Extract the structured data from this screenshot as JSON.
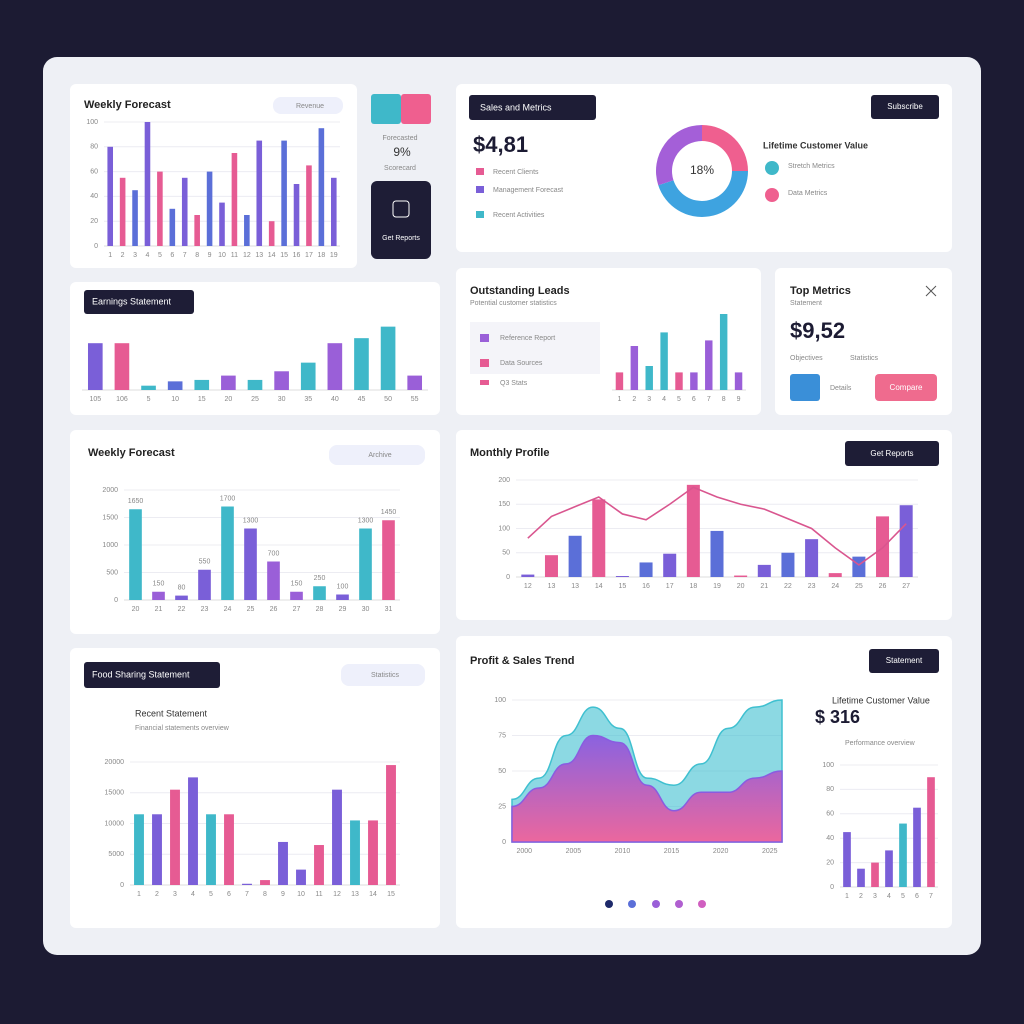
{
  "chart_data": [
    {
      "type": "bar",
      "title": "Weekly Forecast",
      "categories": [
        "1",
        "2",
        "3",
        "4",
        "5",
        "6",
        "7",
        "8",
        "9",
        "10",
        "11",
        "12",
        "13",
        "14",
        "15",
        "16",
        "17",
        "18",
        "19"
      ],
      "values": [
        80,
        55,
        45,
        100,
        60,
        30,
        55,
        25,
        60,
        35,
        75,
        25,
        85,
        20,
        85,
        50,
        65,
        95,
        55
      ],
      "palette": [
        "#7a5fd8",
        "#e65b93",
        "#5b6fd8"
      ],
      "ylim": [
        0,
        100
      ],
      "yticks": [
        0,
        20,
        40,
        60,
        80,
        100
      ],
      "grid": true
    },
    {
      "type": "bar",
      "title": "Earnings Statement",
      "categories": [
        "105",
        "106",
        "5",
        "10",
        "15",
        "20",
        "25",
        "30",
        "35",
        "40",
        "45",
        "50",
        "55"
      ],
      "values": [
        65,
        65,
        6,
        12,
        14,
        20,
        14,
        26,
        38,
        65,
        72,
        88,
        20
      ],
      "colors": [
        "#7a5fd8",
        "#e65b93",
        "#3fb8c9",
        "#5b6fd8",
        "#3fb8c9",
        "#9a5fd8",
        "#3fb8c9",
        "#9a5fd8",
        "#3fb8c9",
        "#9a5fd8",
        "#3fb8c9",
        "#3fb8c9",
        "#9a5fd8"
      ],
      "ylim": [
        0,
        100
      ],
      "grid": false
    },
    {
      "type": "bar",
      "title": "Outstanding Leads",
      "categories": [
        "1",
        "2",
        "3",
        "4",
        "5",
        "6",
        "7",
        "8",
        "9"
      ],
      "values": [
        22,
        55,
        30,
        72,
        22,
        22,
        62,
        95,
        22
      ],
      "colors": [
        "#e65b93",
        "#9a5fd8",
        "#3fb8c9",
        "#3fb8c9",
        "#e65b93",
        "#9a5fd8",
        "#9a5fd8",
        "#3fb8c9",
        "#9a5fd8"
      ],
      "ylim": [
        0,
        100
      ],
      "grid": false
    },
    {
      "type": "bar",
      "title": "Weekly Forecast",
      "categories": [
        "20",
        "21",
        "22",
        "23",
        "24",
        "25",
        "26",
        "27",
        "28",
        "29",
        "30",
        "31"
      ],
      "values": [
        1650,
        150,
        80,
        550,
        1700,
        1300,
        700,
        150,
        250,
        100,
        1300,
        1450
      ],
      "colors": [
        "#3fb8c9",
        "#9a5fd8",
        "#7a5fd8",
        "#7a5fd8",
        "#3fb8c9",
        "#7a5fd8",
        "#9a5fd8",
        "#9a5fd8",
        "#3fb8c9",
        "#7a5fd8",
        "#3fb8c9",
        "#e65b93"
      ],
      "ylim": [
        0,
        2000
      ],
      "yticks": [
        0,
        500,
        1000,
        1500,
        2000
      ],
      "grid": true,
      "show_values": true
    },
    {
      "type": "combo",
      "title": "Monthly Profile",
      "categories": [
        "12",
        "13",
        "13",
        "14",
        "15",
        "16",
        "17",
        "18",
        "19",
        "20",
        "21",
        "22",
        "23",
        "24",
        "25",
        "26",
        "27"
      ],
      "series": [
        {
          "type": "bar",
          "palette": [
            "#7a5fd8",
            "#e65b93",
            "#5b6fd8",
            "#e65b93",
            "#7a5fd8",
            "#5b6fd8"
          ],
          "values": [
            5,
            45,
            85,
            160,
            2,
            30,
            48,
            190,
            95,
            3,
            25,
            50,
            78,
            8,
            42,
            125,
            148
          ]
        },
        {
          "type": "line",
          "color": "#d9568f",
          "values": [
            80,
            125,
            145,
            165,
            130,
            118,
            150,
            185,
            165,
            150,
            140,
            120,
            100,
            60,
            25,
            60,
            110
          ]
        }
      ],
      "ylim": [
        0,
        200
      ],
      "yticks": [
        0,
        50,
        100,
        150,
        200
      ],
      "grid": true
    },
    {
      "type": "bar",
      "title": "Food Sharing Statement",
      "categories": [
        "1",
        "2",
        "3",
        "4",
        "5",
        "6",
        "7",
        "8",
        "9",
        "10",
        "11",
        "12",
        "13",
        "14",
        "15"
      ],
      "values": [
        11500,
        11500,
        15500,
        17500,
        11500,
        11500,
        200,
        800,
        7000,
        2500,
        6500,
        15500,
        10500,
        10500,
        19500
      ],
      "colors": [
        "#3fb8c9",
        "#7a5fd8",
        "#e65b93",
        "#7a5fd8",
        "#3fb8c9",
        "#e65b93",
        "#7a5fd8",
        "#e65b93",
        "#7a5fd8",
        "#7a5fd8",
        "#e65b93",
        "#7a5fd8",
        "#3fb8c9",
        "#e65b93",
        "#e65b93"
      ],
      "ylim": [
        0,
        20000
      ],
      "yticks": [
        0,
        5000,
        10000,
        15000,
        20000
      ],
      "grid": true
    },
    {
      "type": "area",
      "title": "Profit & Sales Trend",
      "categories": [
        "2000",
        null,
        "2005",
        null,
        "2010",
        null,
        "2015",
        null,
        "2020",
        null,
        "2025"
      ],
      "series": [
        {
          "color": "#3fc0d0",
          "values": [
            30,
            45,
            75,
            95,
            80,
            45,
            40,
            55,
            80,
            95,
            100
          ]
        },
        {
          "color": "#8a5ce0",
          "values": [
            25,
            38,
            55,
            75,
            70,
            40,
            22,
            35,
            35,
            45,
            50
          ]
        }
      ],
      "ylim": [
        0,
        100
      ],
      "yticks": [
        0,
        25,
        50,
        75,
        100
      ],
      "grid": true
    },
    {
      "type": "bar",
      "categories": [
        "1",
        "2",
        "3",
        "4",
        "5",
        "6",
        "7"
      ],
      "values": [
        45,
        15,
        20,
        30,
        52,
        65,
        90
      ],
      "colors": [
        "#7a5fd8",
        "#7a5fd8",
        "#e65b93",
        "#7a5fd8",
        "#3fb8c9",
        "#7a5fd8",
        "#e65b93"
      ],
      "ylim": [
        0,
        100
      ],
      "yticks": [
        0,
        20,
        40,
        60,
        80,
        100
      ],
      "grid": true
    },
    {
      "type": "pie",
      "values": [
        25,
        45,
        30
      ],
      "colors": [
        "#ef5f8f",
        "#3ea3e0",
        "#a45fd8"
      ],
      "center_label": "18%"
    }
  ],
  "panels": {
    "weekly": {
      "pill": "Revenue"
    },
    "side": {
      "label": "Forecasted",
      "value": "9%",
      "caption": "Scorecard",
      "tile": "Get Reports"
    },
    "sales": {
      "pill": "Sales and Metrics",
      "amount": "$4,81",
      "items": [
        "Recent Clients",
        "Management Forecast",
        "Recent Activities"
      ],
      "button": "Subscribe",
      "ltv": "Lifetime Customer Value",
      "legend": [
        "Stretch Metrics",
        "Data Metrics"
      ]
    },
    "leads": {
      "subtitle": "Potential customer statistics",
      "items": [
        "Reference Report",
        "Data Sources",
        "Q3 Stats"
      ]
    },
    "top": {
      "title": "Top Metrics",
      "subtitle": "Statement",
      "amount": "$9,52",
      "stats": [
        "Objectives",
        "Statistics"
      ],
      "details": "Details",
      "button": "Compare"
    },
    "forecast2": {
      "pill": "Archive"
    },
    "profile": {
      "button": "Get Reports"
    },
    "food": {
      "pill": "Statistics",
      "heading": "Recent Statement",
      "sub": "Financial statements overview"
    },
    "trend": {
      "button": "Statement",
      "ltv": "Lifetime Customer Value",
      "amount": "$ 316",
      "note": "Performance overview"
    }
  }
}
